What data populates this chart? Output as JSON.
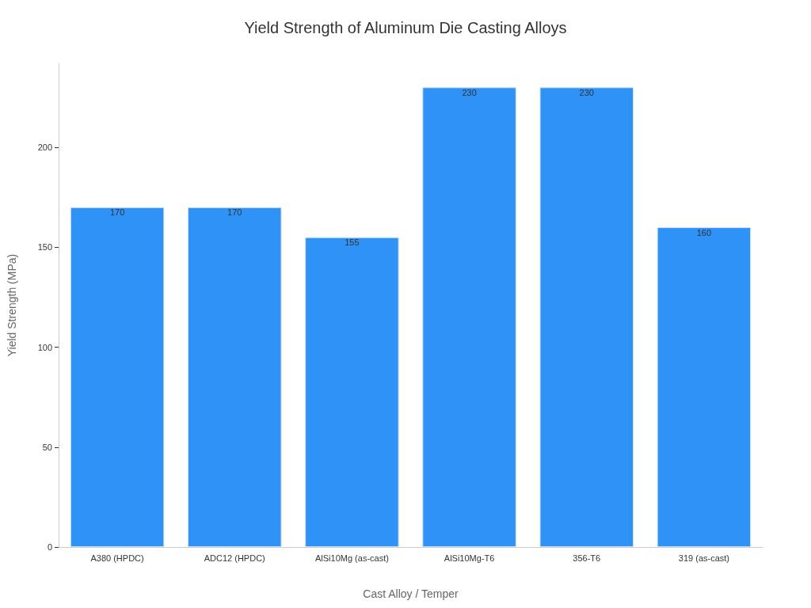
{
  "chart_data": {
    "type": "bar",
    "title": "Yield Strength of Aluminum Die Casting Alloys",
    "xlabel": "Cast Alloy / Temper",
    "ylabel": "Yield Strength (MPa)",
    "categories": [
      "A380 (HPDC)",
      "ADC12 (HPDC)",
      "AlSi10Mg (as-cast)",
      "AlSi10Mg-T6",
      "356-T6",
      "319 (as-cast)"
    ],
    "values": [
      170,
      170,
      155,
      230,
      230,
      160
    ],
    "color": "#2f92f7",
    "ylim": [
      0,
      242
    ],
    "yticks": [
      0,
      50,
      100,
      150,
      200
    ],
    "grid": false,
    "data_labels": true
  }
}
